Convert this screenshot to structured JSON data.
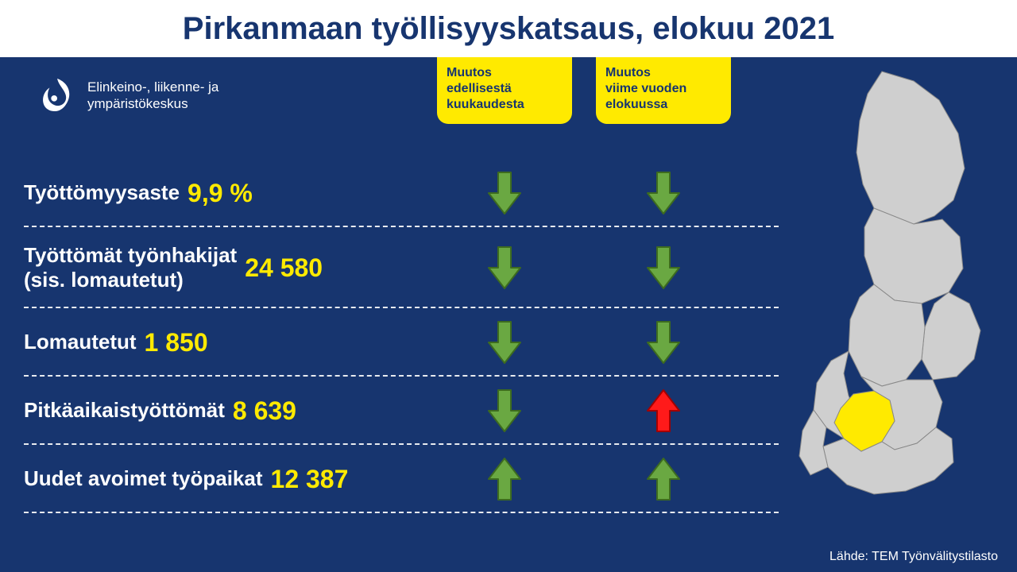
{
  "colors": {
    "page_bg": "#ffffff",
    "panel_bg": "#17356f",
    "title": "#17356f",
    "value": "#ffea00",
    "header_box_bg": "#ffea00",
    "header_box_text": "#17356f",
    "arrow_down_fill": "#6aa842",
    "arrow_down_stroke": "#3d6b1f",
    "arrow_up_green_fill": "#6aa842",
    "arrow_up_green_stroke": "#3d6b1f",
    "arrow_up_red_fill": "#ff1a1a",
    "arrow_up_red_stroke": "#a40000",
    "map_fill": "#cfcfcf",
    "map_stroke": "#888888",
    "map_highlight": "#ffea00",
    "white": "#ffffff"
  },
  "title": "Pirkanmaan työllisyyskatsaus, elokuu 2021",
  "logo_text_1": "Elinkeino-, liikenne- ja",
  "logo_text_2": "ympäristökeskus",
  "header_cols": {
    "col1": {
      "l1": "Muutos",
      "l2": "edellisestä",
      "l3": "kuukaudesta"
    },
    "col2": {
      "l1": "Muutos",
      "l2": "viime vuoden",
      "l3": "elokuussa"
    }
  },
  "rows": [
    {
      "label_html": "Työttömyysaste",
      "value": "9,9 %",
      "a1": "down-green",
      "a2": "down-green"
    },
    {
      "label_html": "Työttömät työnhakijat<br>(sis. lomautetut)",
      "value": "24 580",
      "a1": "down-green",
      "a2": "down-green"
    },
    {
      "label_html": "Lomautetut",
      "value": "1 850",
      "a1": "down-green",
      "a2": "down-green"
    },
    {
      "label_html": "Pitkäaikaistyöttömät",
      "value": "8 639",
      "a1": "down-green",
      "a2": "up-red"
    },
    {
      "label_html": "Uudet avoimet työpaikat",
      "value": "12 387",
      "a1": "up-green",
      "a2": "up-green"
    }
  ],
  "source": "Lähde: TEM Työnvälitystilasto"
}
